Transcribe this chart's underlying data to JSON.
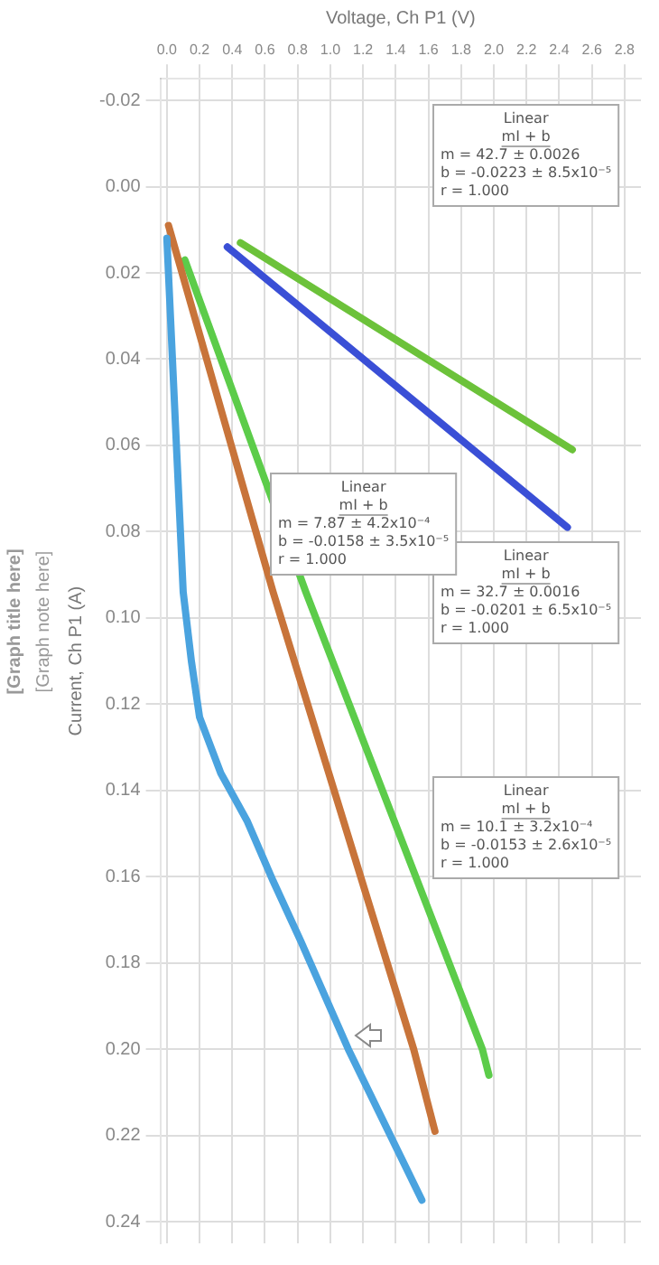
{
  "chart_data": {
    "type": "line",
    "title": "[Graph title here]",
    "subtitle": "[Graph note here]",
    "xlabel": "Voltage, Ch P1 (V)",
    "ylabel": "Current, Ch P1 (A)",
    "xlim": [
      -0.04,
      2.9
    ],
    "xticks": [
      {
        "value": 0,
        "label": "0.0"
      },
      0.2,
      0.4,
      0.6,
      0.8,
      {
        "value": 1,
        "label": "1.0"
      },
      1.2,
      1.4,
      1.6,
      1.8,
      {
        "value": 2,
        "label": "2.0"
      },
      2.2,
      2.4,
      2.6,
      2.8
    ],
    "ylim": [
      0.245,
      -0.025
    ],
    "yticks": [
      {
        "value": -0.02,
        "label": "-0.02"
      },
      {
        "value": 0,
        "label": "0.00"
      },
      {
        "value": 0.02,
        "label": "0.02"
      },
      {
        "value": 0.04,
        "label": "0.04"
      },
      {
        "value": 0.06,
        "label": "0.06"
      },
      {
        "value": 0.08,
        "label": "0.08"
      },
      {
        "value": 0.1,
        "label": "0.10"
      },
      {
        "value": 0.12,
        "label": "0.12"
      },
      {
        "value": 0.14,
        "label": "0.14"
      },
      {
        "value": 0.16,
        "label": "0.16"
      },
      {
        "value": 0.18,
        "label": "0.18"
      },
      {
        "value": 0.2,
        "label": "0.20"
      },
      {
        "value": 0.22,
        "label": "0.22"
      },
      {
        "value": 0.24,
        "label": "0.24"
      }
    ],
    "grid": true,
    "legend": false,
    "marker": "none",
    "line_style": "solid",
    "series": [
      {
        "color": "#4aa3df",
        "x": [
          0,
          0.1,
          0.15,
          0.2,
          0.33,
          0.49,
          0.65,
          0.82,
          1.11,
          1.56
        ],
        "values": [
          0.012,
          0.094,
          0.11,
          0.123,
          0.136,
          0.147,
          0.161,
          0.175,
          0.2,
          0.235
        ]
      },
      {
        "color": "#c8743a",
        "x": [
          0.01,
          0.65,
          1.51,
          1.64
        ],
        "values": [
          0.009,
          0.094,
          0.2,
          0.219
        ]
      },
      {
        "color": "#5ccc4a",
        "x": [
          0.11,
          0.85,
          1.93,
          1.97
        ],
        "values": [
          0.017,
          0.094,
          0.2,
          0.206
        ]
      },
      {
        "color": "#3a4fd6",
        "x": [
          0.37,
          2.45
        ],
        "values": [
          0.014,
          0.079
        ]
      },
      {
        "color": "#6cc23a",
        "x": [
          0.45,
          2.48
        ],
        "values": [
          0.013,
          0.061
        ]
      }
    ],
    "annotations": [
      "Linear\nmI + b\nm = 42.7 ± 0.0026\nb = -0.0223 ± 8.5x10⁻⁵\nr = 1.000",
      "Linear\nmI + b\nm = 32.7 ± 0.0016\nb = -0.0201 ± 6.5x10⁻⁵\nr = 1.000",
      "Linear\nmI + b\nm = 7.87 ± 4.2x10⁻⁴\nb = -0.0158 ± 3.5x10⁻⁵\nr = 1.000",
      "Linear\nmI + b\nm = 10.1 ± 3.2x10⁻⁴\nb = -0.0153 ± 2.6x10⁻⁵\nr = 1.000"
    ]
  }
}
